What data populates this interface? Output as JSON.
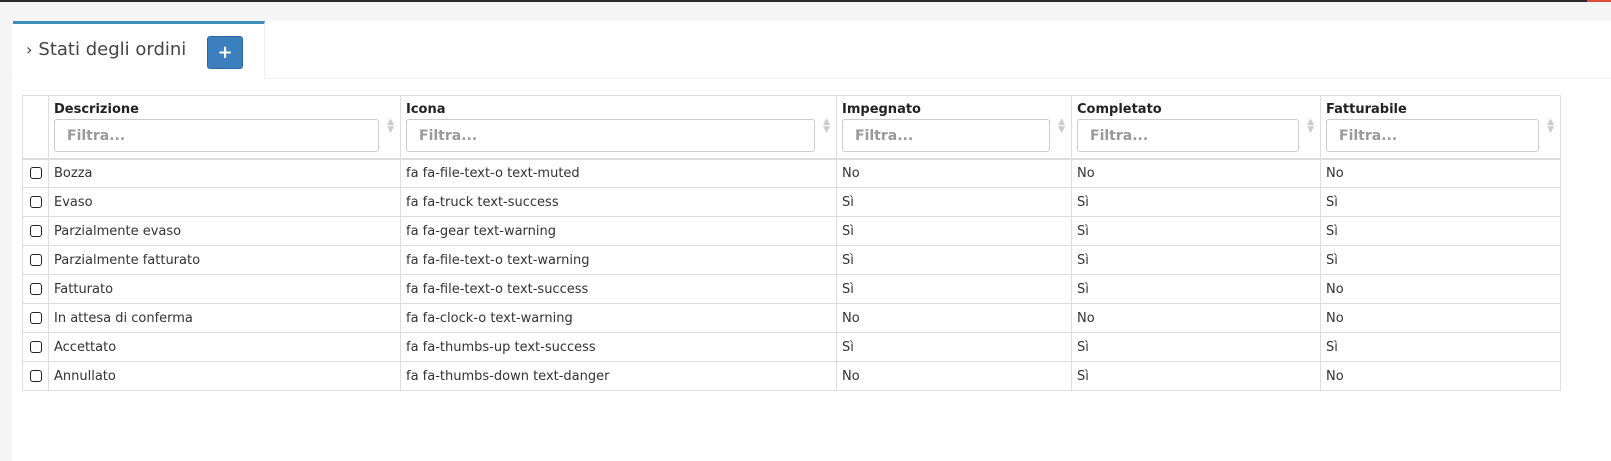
{
  "header": {
    "title": "Stati degli ordini",
    "add_button": "+"
  },
  "columns": [
    "Descrizione",
    "Icona",
    "Impegnato",
    "Completato",
    "Fatturabile"
  ],
  "filter_placeholder": "Filtra...",
  "rows": [
    [
      "Bozza",
      "fa fa-file-text-o text-muted",
      "No",
      "No",
      "No"
    ],
    [
      "Evaso",
      "fa fa-truck text-success",
      "Sì",
      "Sì",
      "Sì"
    ],
    [
      "Parzialmente evaso",
      "fa fa-gear text-warning",
      "Sì",
      "Sì",
      "Sì"
    ],
    [
      "Parzialmente fatturato",
      "fa fa-file-text-o text-warning",
      "Sì",
      "Sì",
      "Sì"
    ],
    [
      "Fatturato",
      "fa fa-file-text-o text-success",
      "Sì",
      "Sì",
      "No"
    ],
    [
      "In attesa di conferma",
      "fa fa-clock-o text-warning",
      "No",
      "No",
      "No"
    ],
    [
      "Accettato",
      "fa fa-thumbs-up text-success",
      "Sì",
      "Sì",
      "Sì"
    ],
    [
      "Annullato",
      "fa fa-thumbs-down text-danger",
      "No",
      "Sì",
      "No"
    ]
  ],
  "colors": {
    "accent": "#3c8dbc",
    "button": "#3c7fbf"
  }
}
